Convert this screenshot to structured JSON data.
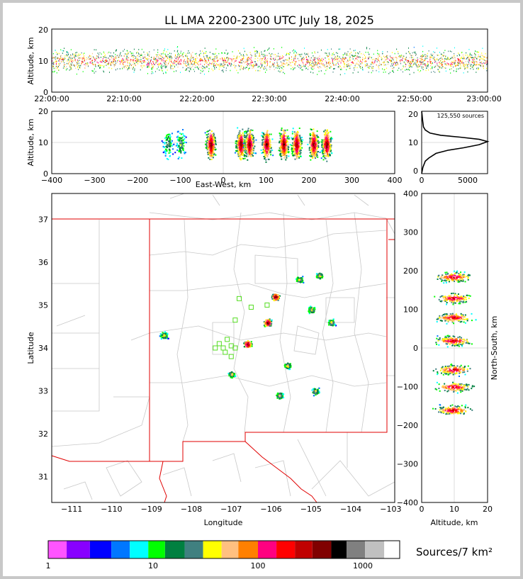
{
  "title": "LL LMA 2200-2300 UTC July 18, 2025",
  "panels": {
    "time_height": {
      "ylabel": "Altitude, km",
      "y_ticks": [
        "0",
        "10",
        "20"
      ],
      "x_ticks": [
        "22:00:00",
        "22:10:00",
        "22:20:00",
        "22:30:00",
        "22:40:00",
        "22:50:00",
        "23:00:00"
      ]
    },
    "ew_height": {
      "ylabel": "Altitude, km",
      "xlabel": "East-West, km",
      "y_ticks": [
        "0",
        "10",
        "20"
      ],
      "x_ticks": [
        "−400",
        "−300",
        "−200",
        "−100",
        "0",
        "100",
        "200",
        "300",
        "400"
      ]
    },
    "histogram": {
      "annotation": "125,550 sources",
      "y_ticks": [
        "0",
        "10",
        "20"
      ],
      "x_ticks": [
        "0",
        "5000"
      ]
    },
    "plan": {
      "xlabel": "Longitude",
      "ylabel": "Latitude",
      "x_ticks": [
        "−111",
        "−110",
        "−109",
        "−108",
        "−107",
        "−106",
        "−105",
        "−104",
        "−103"
      ],
      "y_ticks": [
        "31",
        "32",
        "33",
        "34",
        "35",
        "36",
        "37"
      ]
    },
    "ns_height": {
      "xlabel": "Altitude, km",
      "ylabel": "North-South, km",
      "x_ticks": [
        "0",
        "10",
        "20"
      ],
      "y_ticks": [
        "400",
        "300",
        "200",
        "100",
        "0",
        "−100",
        "−200",
        "−300",
        "−400"
      ]
    }
  },
  "colorbar": {
    "label": "Sources/7 km²",
    "tick_labels": [
      "1",
      "10",
      "100",
      "1000"
    ],
    "colors": [
      "#ff55ff",
      "#8800ff",
      "#0000ff",
      "#0077ff",
      "#00ffff",
      "#00ff00",
      "#008040",
      "#408080",
      "#ffff00",
      "#ffc080",
      "#ff8000",
      "#ff0080",
      "#ff0000",
      "#c00000",
      "#800000",
      "#000000",
      "#808080",
      "#c0c0c0",
      "#ffffff"
    ]
  },
  "chart_data": [
    {
      "type": "scatter",
      "name": "time-height",
      "xlabel": "",
      "ylabel": "Altitude, km",
      "x_range": [
        "22:00:00",
        "23:00:00"
      ],
      "ylim": [
        0,
        20
      ],
      "note_values": {
        "main_band_altitude_km": [
          6,
          13
        ],
        "peak_altitude_km": 10
      }
    },
    {
      "type": "heatmap",
      "name": "east-west vs altitude",
      "xlabel": "East-West, km",
      "ylabel": "Altitude, km",
      "xlim": [
        -400,
        400
      ],
      "ylim": [
        0,
        20
      ],
      "clusters_x_km": [
        -130,
        -100,
        -30,
        40,
        60,
        100,
        140,
        170,
        210,
        240
      ]
    },
    {
      "type": "line",
      "name": "altitude histogram",
      "annotation": "125,550 sources",
      "xlim": [
        0,
        5500
      ],
      "ylim": [
        0,
        20
      ],
      "x": [
        0,
        100,
        300,
        600,
        1200,
        2200,
        3500,
        4800,
        5500,
        4800,
        3200,
        1600,
        700,
        300,
        150,
        80,
        30,
        0
      ],
      "y": [
        0,
        2,
        4,
        5,
        6.5,
        7.5,
        8.3,
        9.3,
        10.3,
        11,
        11.7,
        12.3,
        13,
        14,
        15,
        17,
        19,
        20
      ]
    },
    {
      "type": "heatmap",
      "name": "plan view",
      "xlabel": "Longitude",
      "ylabel": "Latitude",
      "xlim": [
        -111.5,
        -102.9
      ],
      "ylim": [
        30.4,
        37.6
      ],
      "clusters": [
        {
          "lon": -106.6,
          "lat": 34.1
        },
        {
          "lon": -106.1,
          "lat": 34.6
        },
        {
          "lon": -105.9,
          "lat": 35.2
        },
        {
          "lon": -105.3,
          "lat": 35.6
        },
        {
          "lon": -104.8,
          "lat": 35.7
        },
        {
          "lon": -105.0,
          "lat": 34.9
        },
        {
          "lon": -104.5,
          "lat": 34.6
        },
        {
          "lon": -107.0,
          "lat": 33.4
        },
        {
          "lon": -105.6,
          "lat": 33.6
        },
        {
          "lon": -108.7,
          "lat": 34.3
        },
        {
          "lon": -105.8,
          "lat": 32.9
        },
        {
          "lon": -104.9,
          "lat": 33.0
        }
      ]
    },
    {
      "type": "heatmap",
      "name": "altitude vs north-south",
      "xlabel": "Altitude, km",
      "ylabel": "North-South, km",
      "xlim": [
        0,
        20
      ],
      "ylim": [
        -400,
        400
      ],
      "clusters_y_km": [
        185,
        130,
        80,
        20,
        -55,
        -100,
        -160
      ]
    }
  ]
}
